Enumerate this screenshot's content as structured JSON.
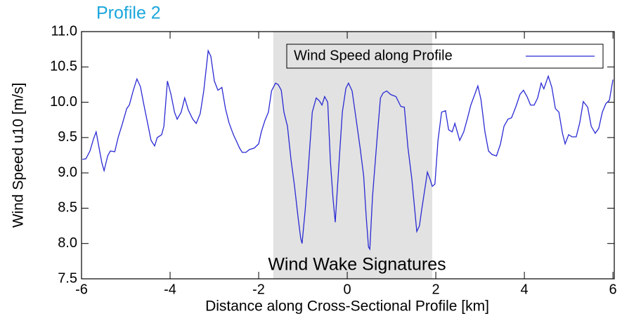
{
  "chart_data": {
    "type": "line",
    "title": "Profile 2",
    "xlabel": "Distance along Cross-Sectional Profile [km]",
    "ylabel": "Wind Speed u10 [m/s]",
    "annotation": "Wind Wake Signatures",
    "highlight_xrange": [
      -1.67,
      1.92
    ],
    "xlim": [
      -6,
      6.03
    ],
    "ylim": [
      7.5,
      11.0
    ],
    "xticks": [
      -6,
      -4,
      -2,
      0,
      2,
      4,
      6
    ],
    "yticks": [
      7.5,
      {
        "value": 8,
        "label": "8.0"
      },
      8.5,
      {
        "value": 9,
        "label": "9.0"
      },
      9.5,
      {
        "value": 10,
        "label": "10.0"
      },
      10.5,
      {
        "value": 11,
        "label": "11.0"
      }
    ],
    "legend_position": "upper right",
    "x": [
      -5.98,
      -5.9,
      -5.81,
      -5.73,
      -5.67,
      -5.59,
      -5.54,
      -5.49,
      -5.41,
      -5.35,
      -5.25,
      -5.17,
      -5.08,
      -4.98,
      -4.92,
      -4.83,
      -4.75,
      -4.67,
      -4.59,
      -4.51,
      -4.43,
      -4.35,
      -4.29,
      -4.19,
      -4.14,
      -4.06,
      -3.98,
      -3.9,
      -3.84,
      -3.75,
      -3.67,
      -3.59,
      -3.49,
      -3.41,
      -3.32,
      -3.24,
      -3.14,
      -3.08,
      -3.0,
      -2.92,
      -2.83,
      -2.75,
      -2.67,
      -2.57,
      -2.51,
      -2.43,
      -2.37,
      -2.29,
      -2.21,
      -2.1,
      -2.0,
      -1.94,
      -1.86,
      -1.78,
      -1.71,
      -1.62,
      -1.56,
      -1.49,
      -1.43,
      -1.35,
      -1.27,
      -1.19,
      -1.11,
      -1.05,
      -1.02,
      -0.95,
      -0.87,
      -0.79,
      -0.7,
      -0.63,
      -0.57,
      -0.51,
      -0.44,
      -0.38,
      -0.32,
      -0.27,
      -0.19,
      -0.11,
      -0.03,
      0.03,
      0.11,
      0.19,
      0.29,
      0.37,
      0.43,
      0.48,
      0.51,
      0.57,
      0.67,
      0.75,
      0.81,
      0.89,
      0.98,
      1.1,
      1.21,
      1.29,
      1.37,
      1.46,
      1.52,
      1.57,
      1.63,
      1.68,
      1.75,
      1.81,
      1.87,
      1.92,
      1.98,
      2.05,
      2.13,
      2.22,
      2.29,
      2.37,
      2.43,
      2.54,
      2.63,
      2.71,
      2.79,
      2.89,
      2.95,
      3.02,
      3.11,
      3.19,
      3.27,
      3.37,
      3.46,
      3.54,
      3.63,
      3.71,
      3.81,
      3.9,
      3.98,
      4.06,
      4.14,
      4.22,
      4.3,
      4.38,
      4.44,
      4.54,
      4.62,
      4.7,
      4.78,
      4.86,
      4.92,
      5.0,
      5.08,
      5.17,
      5.25,
      5.33,
      5.43,
      5.51,
      5.6,
      5.68,
      5.76,
      5.84,
      5.92,
      6.0
    ],
    "series": [
      {
        "name": "Wind Speed along Profile",
        "color": "#2a2ad4",
        "values": [
          9.19,
          9.2,
          9.31,
          9.48,
          9.58,
          9.31,
          9.14,
          9.03,
          9.24,
          9.31,
          9.3,
          9.51,
          9.69,
          9.91,
          9.96,
          10.17,
          10.33,
          10.22,
          9.96,
          9.71,
          9.46,
          9.38,
          9.5,
          9.54,
          9.66,
          10.3,
          10.11,
          9.86,
          9.76,
          9.86,
          10.06,
          9.89,
          9.76,
          9.7,
          9.84,
          10.16,
          10.73,
          10.65,
          10.3,
          10.17,
          10.21,
          9.91,
          9.71,
          9.54,
          9.46,
          9.35,
          9.29,
          9.29,
          9.33,
          9.35,
          9.41,
          9.58,
          9.74,
          9.86,
          10.16,
          10.27,
          10.25,
          10.17,
          9.86,
          9.66,
          9.19,
          8.81,
          8.37,
          8.07,
          8.0,
          8.47,
          9.14,
          9.86,
          10.06,
          10.02,
          9.96,
          10.08,
          10.0,
          9.16,
          8.63,
          8.3,
          9.1,
          9.86,
          10.2,
          10.27,
          10.16,
          9.81,
          9.36,
          8.96,
          8.37,
          7.95,
          7.92,
          8.66,
          9.46,
          10.06,
          10.13,
          10.16,
          10.11,
          10.08,
          9.94,
          9.93,
          9.36,
          8.91,
          8.51,
          8.17,
          8.25,
          8.47,
          8.76,
          9.01,
          8.91,
          8.81,
          8.84,
          9.46,
          9.86,
          9.88,
          9.61,
          9.58,
          9.7,
          9.46,
          9.58,
          9.76,
          9.96,
          10.13,
          10.23,
          10.04,
          9.58,
          9.31,
          9.26,
          9.24,
          9.41,
          9.66,
          9.76,
          9.78,
          9.94,
          10.11,
          10.17,
          10.08,
          9.96,
          9.96,
          10.06,
          10.27,
          10.19,
          10.37,
          10.21,
          9.91,
          9.86,
          9.56,
          9.41,
          9.54,
          9.51,
          9.51,
          9.71,
          10.01,
          9.93,
          9.66,
          9.56,
          9.63,
          9.86,
          9.98,
          10.03,
          10.32
        ]
      }
    ]
  }
}
